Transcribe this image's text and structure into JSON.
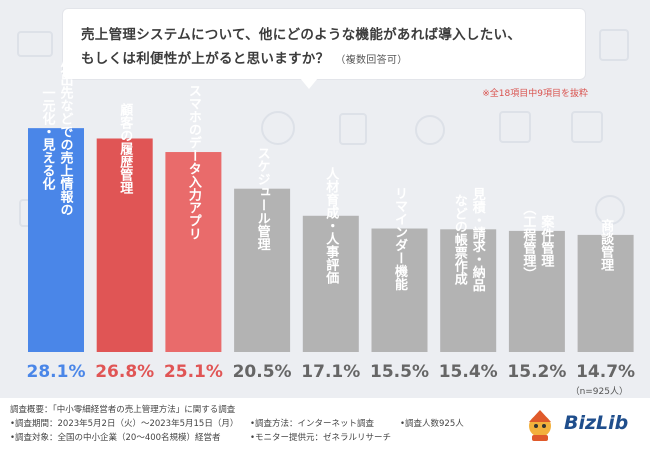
{
  "question": {
    "line1": "売上管理システムについて、他にどのような機能があれば導入したい、",
    "line2": "もしくは利便性が上がると思いますか？",
    "note": "（複数回答可）"
  },
  "excerpt_note": "※全18項目中9項目を抜粋",
  "sample_size": "（n=925人）",
  "chart_data": {
    "type": "bar",
    "title": "売上管理システムについて、他にどのような機能があれば導入したい、もしくは利便性が上がると思いますか？（複数回答可）",
    "categories": [
      "外出先などでの売上情報の一元化・見える化",
      "顧客の履歴管理",
      "スマホのデータ入力アプリ",
      "スケジュール管理",
      "人材育成・人事評価",
      "リマインダー機能",
      "見積・請求・納品などの帳票作成",
      "案件管理（工程管理）",
      "商談管理"
    ],
    "label_lines": [
      [
        "外出先などでの売上情報の",
        "一元化・見える化"
      ],
      [
        "顧客の履歴管理"
      ],
      [
        "スマホのデータ入力アプリ"
      ],
      [
        "スケジュール管理"
      ],
      [
        "人材育成・人事評価"
      ],
      [
        "リマインダー機能"
      ],
      [
        "見積・請求・納品",
        "などの帳票作成"
      ],
      [
        "案件管理",
        "（工程管理）"
      ],
      [
        "商談管理"
      ]
    ],
    "values": [
      28.1,
      26.8,
      25.1,
      20.5,
      17.1,
      15.5,
      15.4,
      15.2,
      14.7
    ],
    "value_labels": [
      "28.1%",
      "26.8%",
      "25.1%",
      "20.5%",
      "17.1%",
      "15.5%",
      "15.4%",
      "15.2%",
      "14.7%"
    ],
    "colors": [
      "#4a86e8",
      "#e05555",
      "#e96b6b",
      "#b3b3b3",
      "#b3b3b3",
      "#b3b3b3",
      "#b3b3b3",
      "#b3b3b3",
      "#b3b3b3"
    ],
    "label_colors": [
      "#4a86e8",
      "#e05555",
      "#e05555",
      "#666666",
      "#666666",
      "#666666",
      "#666666",
      "#666666",
      "#666666"
    ],
    "ylim": [
      0,
      30
    ],
    "grid": false,
    "xlabel": "",
    "ylabel": ""
  },
  "footer": {
    "survey_summary": "調査概要：「中小零細経営者の売上管理方法」に関する調査",
    "survey_period": "•調査期間：2023年5月2日（火）〜2023年5月15日（月）",
    "survey_target": "•調査対象：全国の中小企業（20〜400名規模）経営者",
    "survey_method": "•調査方法：インターネット調査",
    "monitor": "•モニター提供元：ゼネラルリサーチ",
    "respondents": "•調査人数925人"
  },
  "logo": {
    "text": "BizLib"
  }
}
